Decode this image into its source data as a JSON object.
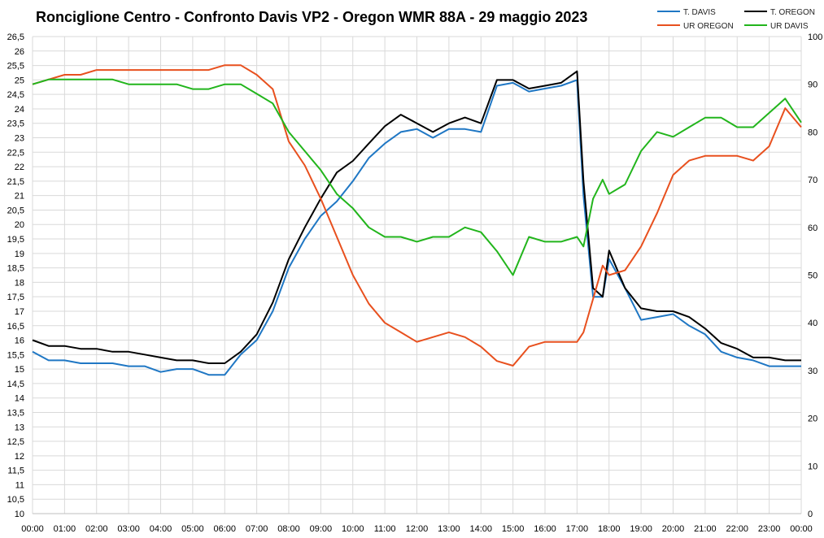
{
  "chart_data": {
    "type": "line",
    "title": "Ronciglione Centro - Confronto Davis VP2  - Oregon WMR 88A - 29 maggio 2023",
    "x_ticks": [
      "00:00",
      "01:00",
      "02:00",
      "03:00",
      "04:00",
      "05:00",
      "06:00",
      "07:00",
      "08:00",
      "09:00",
      "10:00",
      "11:00",
      "12:00",
      "13:00",
      "14:00",
      "15:00",
      "16:00",
      "17:00",
      "18:00",
      "19:00",
      "20:00",
      "21:00",
      "22:00",
      "23:00",
      "00:00"
    ],
    "y_left": {
      "min": 10,
      "max": 26.5,
      "step": 0.5
    },
    "y_right": {
      "min": 0,
      "max": 100,
      "step": 10
    },
    "legend_position": "top-right",
    "grid": true,
    "x": [
      0,
      0.5,
      1,
      1.5,
      2,
      2.5,
      3,
      3.5,
      4,
      4.5,
      5,
      5.5,
      6,
      6.5,
      7,
      7.5,
      8,
      8.5,
      9,
      9.5,
      10,
      10.5,
      11,
      11.5,
      12,
      12.5,
      13,
      13.5,
      14,
      14.5,
      15,
      15.5,
      16,
      16.5,
      17,
      17.2,
      17.5,
      17.8,
      18,
      18.5,
      19,
      19.5,
      20,
      20.5,
      21,
      21.5,
      22,
      22.5,
      23,
      23.5,
      24
    ],
    "series": [
      {
        "name": "T. DAVIS",
        "axis": "left",
        "color": "#1f77c4",
        "values": [
          15.6,
          15.3,
          15.3,
          15.2,
          15.2,
          15.2,
          15.1,
          15.1,
          14.9,
          15.0,
          15.0,
          14.8,
          14.8,
          15.5,
          16.0,
          17.0,
          18.5,
          19.5,
          20.3,
          20.8,
          21.5,
          22.3,
          22.8,
          23.2,
          23.3,
          23.0,
          23.3,
          23.3,
          23.2,
          24.8,
          24.9,
          24.6,
          24.7,
          24.8,
          25.0,
          21.0,
          17.5,
          17.5,
          18.8,
          17.8,
          16.7,
          16.8,
          16.9,
          16.5,
          16.2,
          15.6,
          15.4,
          15.3,
          15.1,
          15.1,
          15.1
        ]
      },
      {
        "name": "T. OREGON",
        "axis": "left",
        "color": "#000000",
        "values": [
          16.0,
          15.8,
          15.8,
          15.7,
          15.7,
          15.6,
          15.6,
          15.5,
          15.4,
          15.3,
          15.3,
          15.2,
          15.2,
          15.6,
          16.2,
          17.3,
          18.8,
          19.9,
          20.9,
          21.8,
          22.2,
          22.8,
          23.4,
          23.8,
          23.5,
          23.2,
          23.5,
          23.7,
          23.5,
          25.0,
          25.0,
          24.7,
          24.8,
          24.9,
          25.3,
          21.5,
          17.8,
          17.5,
          19.1,
          17.8,
          17.1,
          17.0,
          17.0,
          16.8,
          16.4,
          15.9,
          15.7,
          15.4,
          15.4,
          15.3,
          15.3
        ]
      },
      {
        "name": "UR OREGON",
        "axis": "right",
        "color": "#e8501e",
        "values": [
          90,
          91,
          92,
          92,
          93,
          93,
          93,
          93,
          93,
          93,
          93,
          93,
          94,
          94,
          92,
          89,
          78,
          73,
          66,
          58,
          50,
          44,
          40,
          38,
          36,
          37,
          38,
          37,
          35,
          32,
          31,
          35,
          36,
          36,
          36,
          38,
          45,
          52,
          50,
          51,
          56,
          63,
          71,
          74,
          75,
          75,
          75,
          74,
          77,
          85,
          81
        ]
      },
      {
        "name": "UR DAVIS",
        "axis": "right",
        "color": "#22b51c",
        "values": [
          90,
          91,
          91,
          91,
          91,
          91,
          90,
          90,
          90,
          90,
          89,
          89,
          90,
          90,
          88,
          86,
          80,
          76,
          72,
          67,
          64,
          60,
          58,
          58,
          57,
          58,
          58,
          60,
          59,
          55,
          50,
          58,
          57,
          57,
          58,
          56,
          66,
          70,
          67,
          69,
          76,
          80,
          79,
          81,
          83,
          83,
          81,
          81,
          84,
          87,
          82
        ]
      }
    ]
  }
}
